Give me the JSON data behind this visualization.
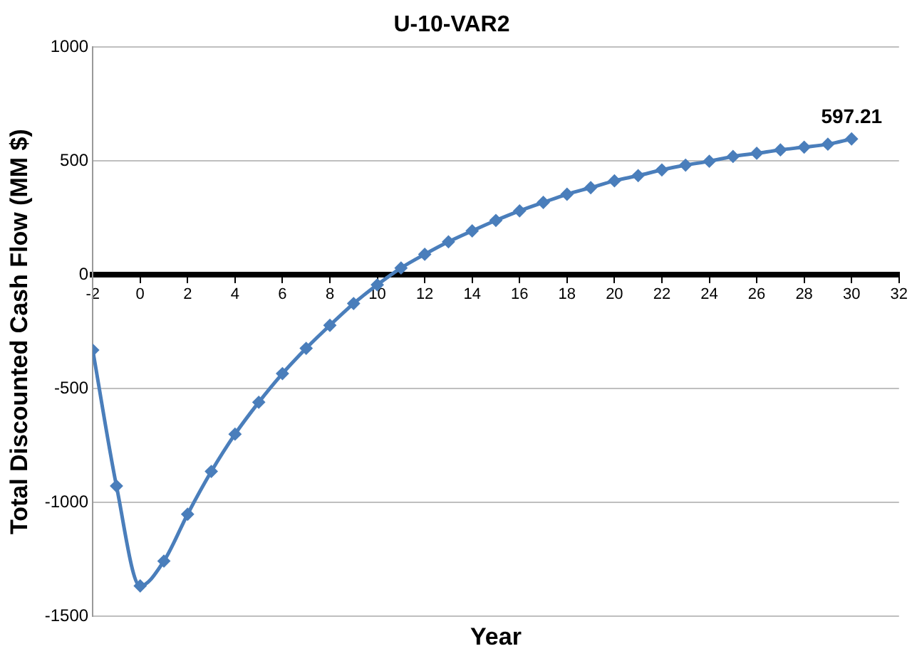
{
  "chart_data": {
    "type": "line",
    "title": "U-10-VAR2",
    "xlabel": "Year",
    "ylabel": "Total Discounted Cash Flow (MM $)",
    "x": [
      -2,
      -1,
      0,
      1,
      2,
      3,
      4,
      5,
      6,
      7,
      8,
      9,
      10,
      11,
      12,
      13,
      14,
      15,
      16,
      17,
      18,
      19,
      20,
      21,
      22,
      23,
      24,
      25,
      26,
      27,
      28,
      29,
      30
    ],
    "series": [
      {
        "color": "#4a7ebb",
        "values": [
          -331,
          -928,
          -1367,
          -1258,
          -1052,
          -864,
          -700,
          -560,
          -434,
          -323,
          -222,
          -126,
          -44,
          30,
          90,
          145,
          193,
          239,
          281,
          318,
          354,
          383,
          413,
          436,
          461,
          482,
          499,
          520,
          534,
          549,
          561,
          574,
          597.21
        ],
        "value_labels": [
          null,
          null,
          null,
          null,
          null,
          null,
          null,
          null,
          null,
          null,
          null,
          null,
          null,
          null,
          null,
          null,
          null,
          null,
          null,
          null,
          null,
          null,
          null,
          null,
          null,
          null,
          null,
          null,
          null,
          null,
          null,
          null,
          "597.21"
        ]
      }
    ],
    "xlim": [
      -2,
      32
    ],
    "xticks": [
      -2,
      0,
      2,
      4,
      6,
      8,
      10,
      12,
      14,
      16,
      18,
      20,
      22,
      24,
      26,
      28,
      30,
      32
    ],
    "ylim": [
      -1500,
      1000
    ],
    "yticks": [
      -1500,
      -1000,
      -500,
      0,
      500,
      1000
    ],
    "grid": "y",
    "legend": false,
    "marker": "diamond",
    "line_style": "solid"
  }
}
